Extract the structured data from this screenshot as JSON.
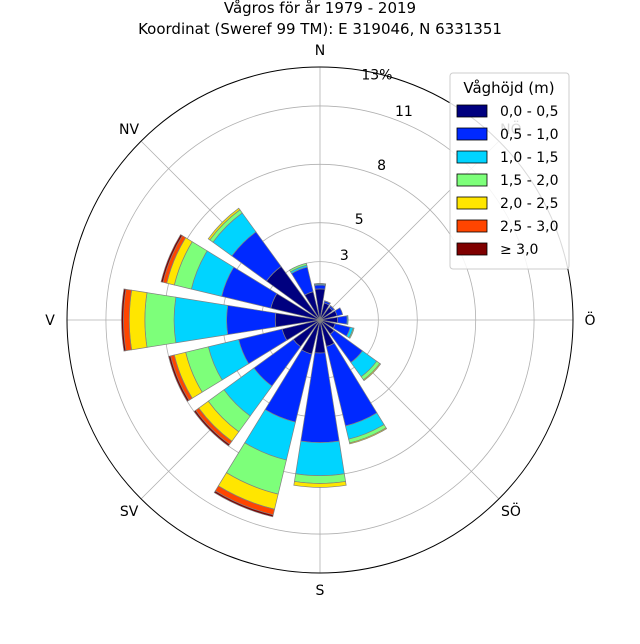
{
  "title": "Vågros för år 1979 - 2019",
  "subtitle": "Koordinat (Sweref 99 TM): E 319046, N 6331351",
  "chart_data": {
    "type": "windrose",
    "directions": [
      "N",
      "NNÖ",
      "NÖ",
      "ÖNÖ",
      "Ö",
      "ÖSÖ",
      "SÖ",
      "SSÖ",
      "S",
      "SSV",
      "SV",
      "VSV",
      "V",
      "VNV",
      "NV",
      "NNV"
    ],
    "compass_labels": [
      "N",
      "NÖ",
      "Ö",
      "SÖ",
      "S",
      "SV",
      "V",
      "NV"
    ],
    "radial_ticks": [
      3,
      5,
      8,
      11
    ],
    "radial_tick_labels": [
      "3",
      "5",
      "8",
      "11"
    ],
    "radial_max_label": "13%",
    "rmax": 13,
    "grid": true,
    "legend_position": "top-right",
    "legend_title": "Våghöjd (m)",
    "series": [
      {
        "name": "0,0 - 0,5",
        "color": "#00007f",
        "values": [
          1.6,
          0.9,
          0.8,
          0.9,
          0.9,
          0.8,
          0.9,
          1.4,
          1.7,
          1.8,
          1.7,
          2.0,
          2.3,
          2.6,
          3.4,
          1.5
        ]
      },
      {
        "name": "0,5 - 1,0",
        "color": "#0029ff",
        "values": [
          0.2,
          0.1,
          0.1,
          0.3,
          0.5,
          0.8,
          1.8,
          4.2,
          4.6,
          3.6,
          2.5,
          2.3,
          2.5,
          2.6,
          2.2,
          1.3
        ]
      },
      {
        "name": "1,0 - 1,5",
        "color": "#00d4ff",
        "values": [
          0.05,
          0.02,
          0.02,
          0.0,
          0.05,
          0.15,
          0.9,
          0.7,
          1.7,
          2.0,
          1.9,
          1.6,
          2.7,
          1.6,
          1.2,
          0.1
        ]
      },
      {
        "name": "1,5 - 2,0",
        "color": "#7dff7a",
        "values": [
          0.03,
          0.0,
          0.0,
          0.0,
          0.0,
          0.05,
          0.2,
          0.2,
          0.4,
          1.8,
          1.0,
          1.2,
          1.5,
          0.9,
          0.2,
          0.1
        ]
      },
      {
        "name": "2,0 - 2,5",
        "color": "#ffe600",
        "values": [
          0.0,
          0.0,
          0.0,
          0.0,
          0.0,
          0.0,
          0.05,
          0.05,
          0.2,
          0.8,
          0.6,
          0.6,
          0.8,
          0.4,
          0.1,
          0.0
        ]
      },
      {
        "name": "2,5 - 3,0",
        "color": "#ff4500",
        "values": [
          0.0,
          0.0,
          0.0,
          0.0,
          0.0,
          0.0,
          0.0,
          0.0,
          0.0,
          0.3,
          0.2,
          0.2,
          0.3,
          0.2,
          0.0,
          0.0
        ]
      },
      {
        "name": "≥ 3,0",
        "color": "#7f0000",
        "values": [
          0.0,
          0.0,
          0.0,
          0.0,
          0.0,
          0.0,
          0.0,
          0.0,
          0.0,
          0.1,
          0.1,
          0.1,
          0.1,
          0.1,
          0.0,
          0.0
        ]
      }
    ]
  }
}
